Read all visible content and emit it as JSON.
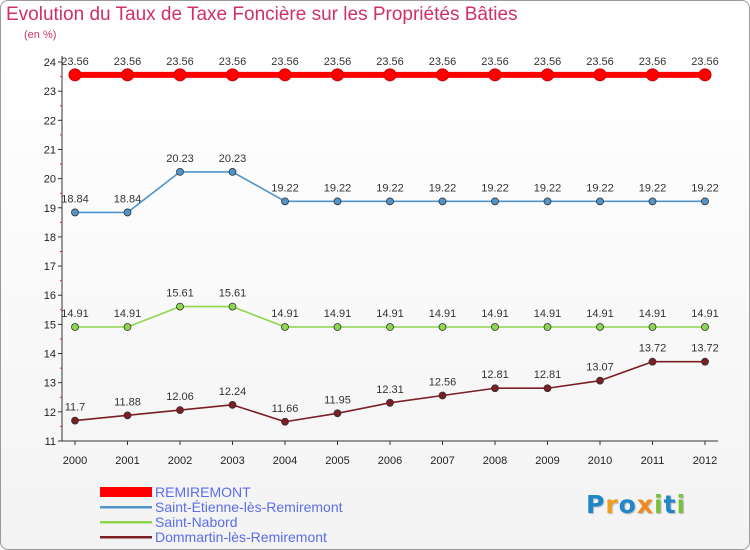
{
  "title": "Evolution du Taux de Taxe Foncière sur les Propriétés Bâties",
  "unit_label": "(en %)",
  "logo": {
    "text": "Proxiti",
    "letters": [
      "P",
      "r",
      "o",
      "x",
      "i",
      "t",
      "i"
    ],
    "colors": [
      "#1f86c8",
      "#f0a020",
      "#1f86c8",
      "#f08a20",
      "#7cc040",
      "#1f86c8",
      "#7cc040"
    ]
  },
  "chart_data": {
    "type": "line",
    "title": "Evolution du Taux de Taxe Foncière sur les Propriétés Bâties",
    "xlabel": "",
    "ylabel": "(en %)",
    "categories": [
      "2000",
      "2001",
      "2002",
      "2003",
      "2004",
      "2005",
      "2006",
      "2007",
      "2008",
      "2009",
      "2010",
      "2011",
      "2012"
    ],
    "ylim": [
      11,
      24
    ],
    "yticks": [
      11,
      12,
      13,
      14,
      15,
      16,
      17,
      18,
      19,
      20,
      21,
      22,
      23,
      24
    ],
    "grid": false,
    "legend_position": "bottom-left",
    "series": [
      {
        "name": "REMIREMONT",
        "color": "#ff0000",
        "values": [
          23.56,
          23.56,
          23.56,
          23.56,
          23.56,
          23.56,
          23.56,
          23.56,
          23.56,
          23.56,
          23.56,
          23.56,
          23.56
        ],
        "labels": [
          "23.56",
          "23.56",
          "23.56",
          "23.56",
          "23.56",
          "23.56",
          "23.56",
          "23.56",
          "23.56",
          "23.56",
          "23.56",
          "23.56",
          "23.56"
        ]
      },
      {
        "name": "Saint-Étienne-lès-Remiremont",
        "color": "#4f95cc",
        "values": [
          18.84,
          18.84,
          20.23,
          20.23,
          19.22,
          19.22,
          19.22,
          19.22,
          19.22,
          19.22,
          19.22,
          19.22,
          19.22
        ],
        "labels": [
          "18.84",
          "18.84",
          "20.23",
          "20.23",
          "19.22",
          "19.22",
          "19.22",
          "19.22",
          "19.22",
          "19.22",
          "19.22",
          "19.22",
          "19.22"
        ]
      },
      {
        "name": "Saint-Nabord",
        "color": "#8ed64e",
        "values": [
          14.91,
          14.91,
          15.61,
          15.61,
          14.91,
          14.91,
          14.91,
          14.91,
          14.91,
          14.91,
          14.91,
          14.91,
          14.91
        ],
        "labels": [
          "14.91",
          "14.91",
          "15.61",
          "15.61",
          "14.91",
          "14.91",
          "14.91",
          "14.91",
          "14.91",
          "14.91",
          "14.91",
          "14.91",
          "14.91"
        ]
      },
      {
        "name": "Dommartin-lès-Remiremont",
        "color": "#7a1f24",
        "values": [
          11.7,
          11.88,
          12.06,
          12.24,
          11.66,
          11.95,
          12.31,
          12.56,
          12.81,
          12.81,
          13.07,
          13.72,
          13.72
        ],
        "labels": [
          "11.7",
          "11.88",
          "12.06",
          "12.24",
          "11.66",
          "11.95",
          "12.31",
          "12.56",
          "12.81",
          "12.81",
          "13.07",
          "13.72",
          "13.72"
        ]
      }
    ]
  }
}
